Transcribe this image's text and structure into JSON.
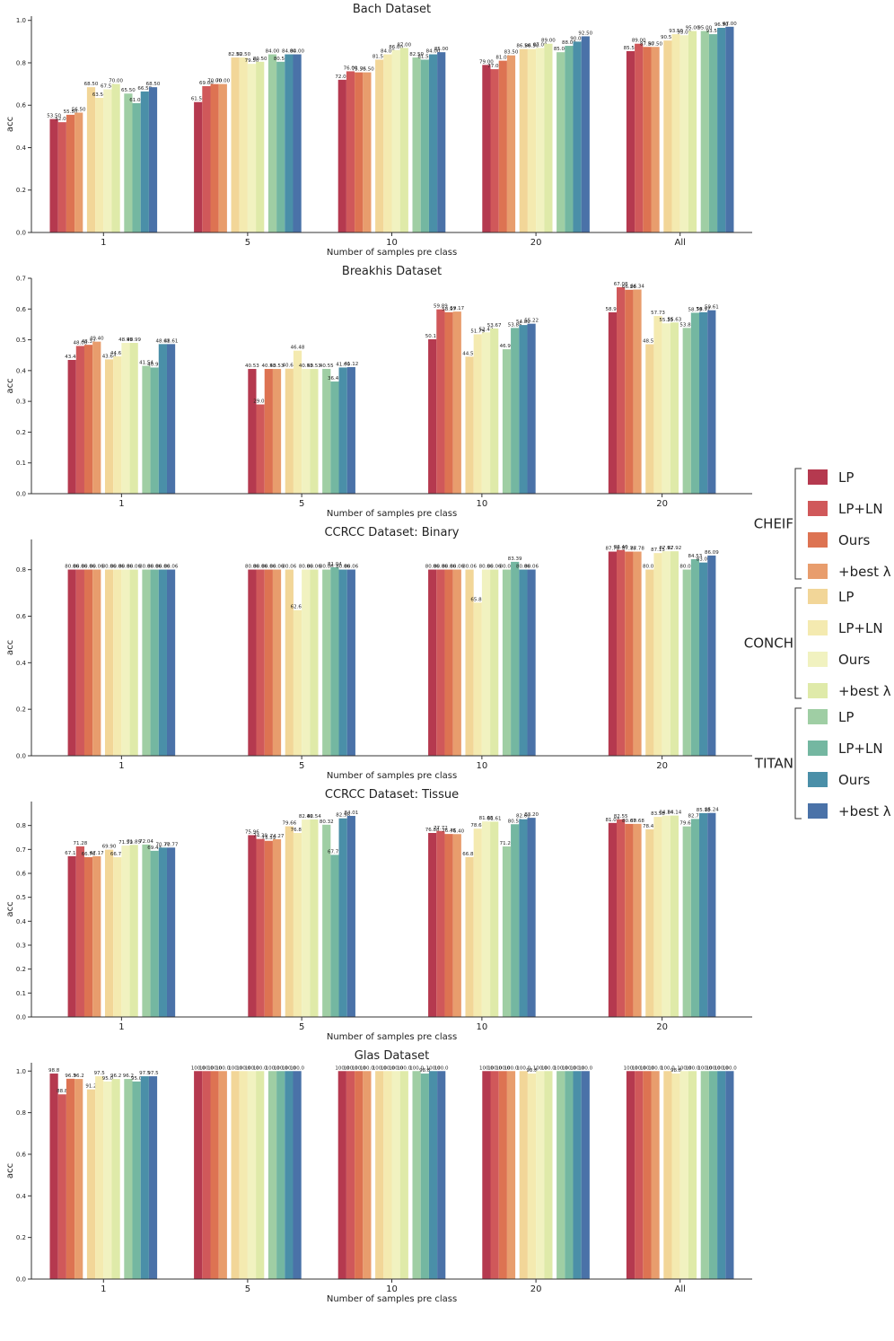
{
  "colors": [
    "#b5394f",
    "#d0585a",
    "#dd7352",
    "#e89d6d",
    "#f2d698",
    "#f4eab0",
    "#f1f2c0",
    "#dfeaa9",
    "#9fcea4",
    "#74b7a1",
    "#4a8fa8",
    "#4a72a8"
  ],
  "legend": {
    "groups": [
      {
        "name": "CHEIF",
        "items": [
          "LP",
          "LP+LN",
          "Ours",
          "+best λ"
        ]
      },
      {
        "name": "CONCH",
        "items": [
          "LP",
          "LP+LN",
          "Ours",
          "+best λ"
        ]
      },
      {
        "name": "TITAN",
        "items": [
          "LP",
          "LP+LN",
          "Ours",
          "+best λ"
        ]
      }
    ]
  },
  "chart_data": [
    {
      "type": "bar",
      "title": "Bach Dataset",
      "xlabel": "Number of samples pre class",
      "ylabel": "acc",
      "ylim": [
        0,
        1.02
      ],
      "yticks": [
        0.0,
        0.2,
        0.4,
        0.6,
        0.8,
        1.0
      ],
      "categories": [
        "1",
        "5",
        "10",
        "20",
        "All"
      ],
      "values": [
        [
          53.5,
          52.0,
          55.5,
          56.5,
          68.5,
          63.5,
          67.5,
          70.0,
          65.5,
          61.0,
          66.5,
          68.5
        ],
        [
          61.5,
          69.0,
          70.0,
          70.0,
          82.5,
          82.5,
          79.5,
          80.5,
          84.0,
          80.5,
          84.0,
          84.0
        ],
        [
          72.0,
          76.0,
          75.5,
          75.5,
          81.5,
          84.0,
          86.0,
          87.0,
          82.5,
          81.5,
          84.0,
          85.0
        ],
        [
          79.0,
          77.0,
          81.0,
          83.5,
          86.5,
          86.5,
          87.0,
          89.0,
          85.0,
          88.0,
          90.0,
          92.5
        ],
        [
          85.5,
          89.0,
          87.5,
          87.5,
          90.5,
          93.5,
          93.0,
          95.0,
          95.0,
          93.5,
          96.5,
          97.0
        ]
      ],
      "labels": [
        [
          "53.50",
          "52.00",
          "55.50",
          "56.50",
          "68.50",
          "63.50",
          "67.50",
          "70.00",
          "65.50",
          "61.00",
          "66.50",
          "68.50"
        ],
        [
          "61.50",
          "69.00",
          "70.00",
          "70.00",
          "82.50",
          "82.50",
          "79.50",
          "80.50",
          "84.00",
          "80.50",
          "84.00",
          "84.00"
        ],
        [
          "72.00",
          "76.00",
          "75.50",
          "75.50",
          "81.50",
          "84.00",
          "86.00",
          "87.00",
          "82.50",
          "81.50",
          "84.00",
          "85.00"
        ],
        [
          "79.00",
          "77.00",
          "81.00",
          "83.50",
          "86.50",
          "86.50",
          "87.00",
          "89.00",
          "85.00",
          "88.00",
          "90.00",
          "92.50"
        ],
        [
          "85.50",
          "89.00",
          "87.50",
          "87.50",
          "90.50",
          "93.50",
          "93.00",
          "95.00",
          "95.00",
          "93.50",
          "96.50",
          "97.00"
        ]
      ]
    },
    {
      "type": "bar",
      "title": "Breakhis Dataset",
      "xlabel": "Number of samples pre class",
      "ylabel": "acc",
      "ylim": [
        0,
        0.7
      ],
      "yticks": [
        0.0,
        0.1,
        0.2,
        0.3,
        0.4,
        0.5,
        0.6,
        0.7
      ],
      "categories": [
        "1",
        "5",
        "10",
        "20"
      ],
      "values": [
        [
          43.46,
          48.0,
          48.37,
          49.4,
          43.64,
          44.62,
          48.99,
          48.99,
          41.54,
          40.99,
          48.61,
          48.61
        ],
        [
          40.53,
          29.01,
          40.53,
          40.53,
          40.62,
          46.48,
          40.53,
          40.53,
          40.55,
          36.45,
          41.0,
          41.12
        ],
        [
          50.19,
          59.89,
          58.97,
          59.17,
          44.52,
          51.79,
          52.42,
          53.67,
          46.93,
          53.85,
          54.8,
          55.22
        ],
        [
          58.94,
          67.08,
          66.26,
          66.34,
          48.56,
          57.73,
          55.35,
          55.63,
          53.86,
          58.79,
          58.97,
          59.61
        ]
      ],
      "labels": [
        [
          "43.46",
          "48.00",
          "48.37",
          "49.40",
          "43.64",
          "44.62",
          "48.99",
          "48.99",
          "41.54",
          "40.99",
          "48.61",
          "48.61"
        ],
        [
          "40.53",
          "29.01",
          "40.53",
          "40.53",
          "40.62",
          "46.48",
          "40.53",
          "40.53",
          "40.55",
          "36.45",
          "41.00",
          "41.12"
        ],
        [
          "50.19",
          "59.89",
          "58.97",
          "59.17",
          "44.52",
          "51.79",
          "52.42",
          "53.67",
          "46.93",
          "53.85",
          "54.80",
          "55.22"
        ],
        [
          "58.94",
          "67.08",
          "66.26",
          "66.34",
          "48.56",
          "57.73",
          "55.35",
          "55.63",
          "53.86",
          "58.79",
          "58.97",
          "59.61"
        ]
      ]
    },
    {
      "type": "bar",
      "title": "CCRCC Dataset: Binary",
      "xlabel": "Number of samples pre class",
      "ylabel": "acc",
      "ylim": [
        0,
        0.93
      ],
      "yticks": [
        0.0,
        0.2,
        0.4,
        0.6,
        0.8
      ],
      "categories": [
        "1",
        "5",
        "10",
        "20"
      ],
      "values": [
        [
          80.06,
          80.06,
          80.06,
          80.06,
          80.06,
          80.06,
          80.06,
          80.06,
          80.06,
          80.06,
          80.06,
          80.06
        ],
        [
          80.06,
          80.06,
          80.06,
          80.06,
          80.06,
          62.62,
          80.06,
          80.06,
          80.06,
          81.04,
          80.06,
          80.06
        ],
        [
          80.06,
          80.06,
          80.06,
          80.06,
          80.06,
          65.86,
          80.06,
          80.06,
          80.06,
          83.39,
          80.06,
          80.06
        ],
        [
          87.78,
          88.46,
          87.78,
          87.78,
          80.06,
          87.15,
          87.92,
          87.92,
          80.06,
          84.53,
          83.09,
          86.09
        ]
      ],
      "labels": [
        [
          "80.06",
          "80.06",
          "80.06",
          "80.06",
          "80.06",
          "80.06",
          "80.06",
          "80.06",
          "80.06",
          "80.06",
          "80.06",
          "80.06"
        ],
        [
          "80.06",
          "80.06",
          "80.06",
          "80.06",
          "80.06",
          "62.62",
          "80.06",
          "80.06",
          "80.06",
          "81.04",
          "80.06",
          "80.06"
        ],
        [
          "80.06",
          "80.06",
          "80.06",
          "80.06",
          "80.06",
          "65.86",
          "80.06",
          "80.06",
          "80.06",
          "83.39",
          "80.06",
          "80.06"
        ],
        [
          "87.78",
          "88.46",
          "87.78",
          "87.78",
          "80.06",
          "87.15",
          "87.92",
          "87.92",
          "80.06",
          "84.53",
          "83.09",
          "86.09"
        ]
      ]
    },
    {
      "type": "bar",
      "title": "CCRCC Dataset: Tissue",
      "xlabel": "Number of samples pre class",
      "ylabel": "acc",
      "ylim": [
        0,
        0.9
      ],
      "yticks": [
        0.0,
        0.1,
        0.2,
        0.3,
        0.4,
        0.5,
        0.6,
        0.7,
        0.8
      ],
      "categories": [
        "1",
        "5",
        "10",
        "20"
      ],
      "values": [
        [
          67.18,
          71.28,
          66.76,
          67.17,
          69.9,
          66.76,
          71.59,
          71.89,
          72.04,
          69.43,
          70.77,
          70.77
        ],
        [
          75.96,
          74.39,
          73.59,
          74.27,
          79.66,
          76.87,
          82.46,
          82.54,
          80.32,
          67.73,
          82.98,
          84.01
        ],
        [
          76.88,
          77.72,
          76.45,
          76.4,
          66.81,
          78.68,
          81.68,
          81.61,
          71.24,
          80.53,
          82.6,
          83.2
        ],
        [
          81.07,
          82.55,
          80.67,
          80.68,
          78.4,
          83.58,
          84.14,
          84.14,
          79.62,
          82.73,
          85.18,
          85.24
        ]
      ],
      "labels": [
        [
          "67.18",
          "71.28",
          "66.76",
          "67.17",
          "69.90",
          "66.76",
          "71.59",
          "71.89",
          "72.04",
          "69.43",
          "70.77",
          "70.77"
        ],
        [
          "75.96",
          "74.39",
          "73.59",
          "74.27",
          "79.66",
          "76.87",
          "82.46",
          "82.54",
          "80.32",
          "67.73",
          "82.98",
          "84.01"
        ],
        [
          "76.88",
          "77.72",
          "76.45",
          "76.40",
          "66.81",
          "78.68",
          "81.68",
          "81.61",
          "71.24",
          "80.53",
          "82.60",
          "83.20"
        ],
        [
          "81.07",
          "82.55",
          "80.67",
          "80.68",
          "78.40",
          "83.58",
          "84.14",
          "84.14",
          "79.62",
          "82.73",
          "85.18",
          "85.24"
        ]
      ]
    },
    {
      "type": "bar",
      "title": "Glas Dataset",
      "xlabel": "Number of samples pre class",
      "ylabel": "acc",
      "ylim": [
        0,
        1.04
      ],
      "yticks": [
        0.0,
        0.2,
        0.4,
        0.6,
        0.8,
        1.0
      ],
      "categories": [
        "1",
        "5",
        "10",
        "20",
        "All"
      ],
      "values": [
        [
          98.8,
          88.8,
          96.3,
          96.2,
          91.2,
          97.5,
          95.0,
          96.2,
          96.2,
          95.0,
          97.5,
          97.5
        ],
        [
          100.0,
          100.0,
          100.0,
          100.0,
          100.0,
          100.0,
          100.0,
          100.0,
          100.0,
          100.0,
          100.0,
          100.0
        ],
        [
          100.0,
          100.0,
          100.0,
          100.0,
          100.0,
          100.0,
          100.0,
          100.0,
          100.0,
          98.8,
          100.0,
          100.0
        ],
        [
          100.0,
          100.0,
          100.0,
          100.0,
          100.0,
          98.8,
          100.0,
          100.0,
          100.0,
          100.0,
          100.0,
          100.0
        ],
        [
          100.0,
          100.0,
          100.0,
          100.0,
          100.0,
          98.8,
          100.0,
          100.0,
          100.0,
          100.0,
          100.0,
          100.0
        ]
      ],
      "labels": [
        [
          "98.8",
          "88.8",
          "96.3",
          "96.2",
          "91.2",
          "97.5",
          "95.0",
          "96.2",
          "96.2",
          "95.0",
          "97.5",
          "97.5"
        ],
        [
          "100.0",
          "100.0",
          "100.0",
          "100.0",
          "100.0",
          "100.0",
          "100.0",
          "100.0",
          "100.0",
          "100.0",
          "100.0",
          "100.0"
        ],
        [
          "100.0",
          "100.0",
          "100.0",
          "100.0",
          "100.0",
          "100.0",
          "100.0",
          "100.0",
          "100.0",
          "98.8",
          "100.0",
          "100.0"
        ],
        [
          "100.0",
          "100.0",
          "100.0",
          "100.0",
          "100.0",
          "98.8",
          "100.0",
          "100.0",
          "100.0",
          "100.0",
          "100.0",
          "100.0"
        ],
        [
          "100.0",
          "100.0",
          "100.0",
          "100.0",
          "100.0",
          "98.8",
          "100.0",
          "100.0",
          "100.0",
          "100.0",
          "100.0",
          "100.0"
        ]
      ]
    }
  ]
}
